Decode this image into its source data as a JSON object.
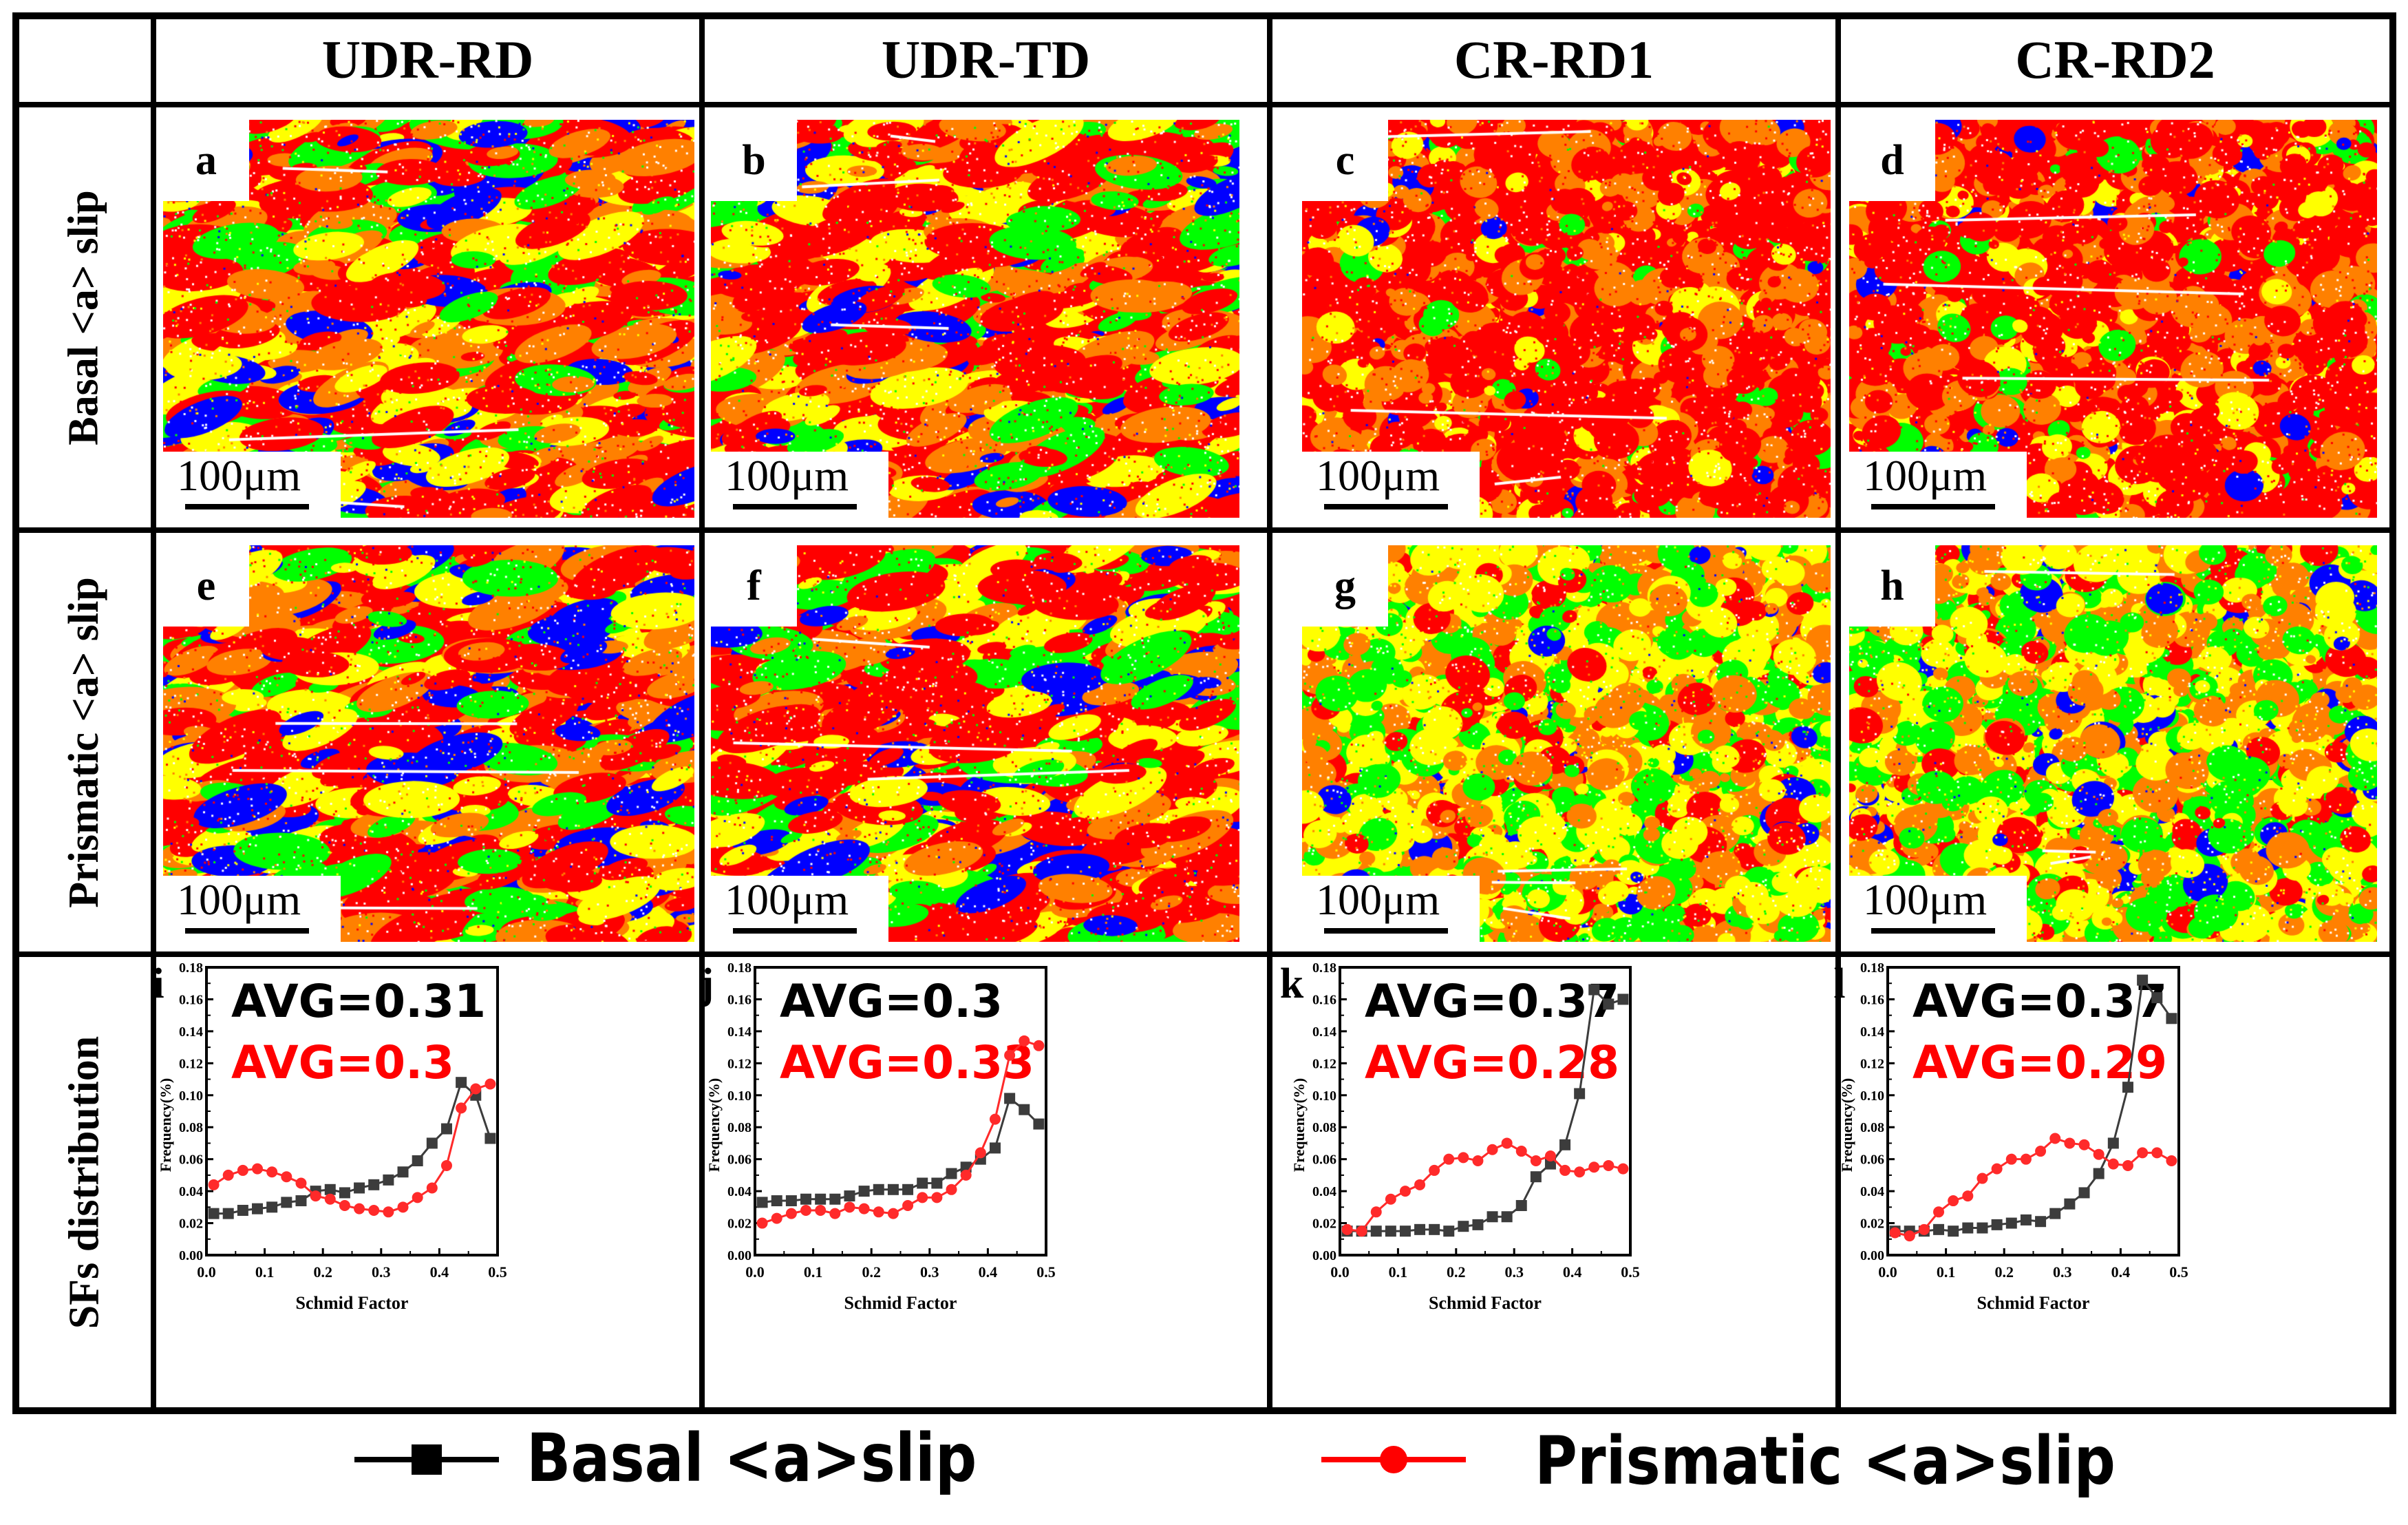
{
  "headers": {
    "columns": [
      "UDR-RD",
      "UDR-TD",
      "CR-RD1",
      "CR-RD2"
    ],
    "rows": [
      "Basal <a> slip",
      "Prismatic <a> slip",
      "SFs distribution"
    ]
  },
  "maps": {
    "labels": [
      "a",
      "b",
      "c",
      "d",
      "e",
      "f",
      "g",
      "h"
    ],
    "scale_bar": "100μm",
    "palette": [
      "#ff0000",
      "#ff8000",
      "#ffff00",
      "#00ff00",
      "#0000ff"
    ]
  },
  "legend": {
    "basal": {
      "label": "Basal <a>slip",
      "color": "#000000"
    },
    "prismatic": {
      "label": "Prismatic <a>slip",
      "color": "#ff0000"
    }
  },
  "chart_data": [
    {
      "type": "line",
      "panel": "i",
      "avg_basal": "AVG=0.31",
      "avg_prismatic": "AVG=0.3",
      "xlabel": "Schmid Factor",
      "ylabel": "Frequency(%)",
      "xlim": [
        0,
        0.5
      ],
      "ylim": [
        0,
        0.18
      ],
      "xticks": [
        "0.0",
        "0.1",
        "0.2",
        "0.3",
        "0.4",
        "0.5"
      ],
      "yticks": [
        "0.00",
        "0.02",
        "0.04",
        "0.06",
        "0.08",
        "0.10",
        "0.12",
        "0.14",
        "0.16",
        "0.18"
      ],
      "x": [
        0.0125,
        0.0375,
        0.0625,
        0.0875,
        0.1125,
        0.1375,
        0.1625,
        0.1875,
        0.2125,
        0.2375,
        0.2625,
        0.2875,
        0.3125,
        0.3375,
        0.3625,
        0.3875,
        0.4125,
        0.4375,
        0.4625,
        0.4875
      ],
      "series": [
        {
          "name": "Basal <a>slip",
          "color": "#3c3c3c",
          "marker": "square",
          "values": [
            0.026,
            0.026,
            0.028,
            0.029,
            0.03,
            0.033,
            0.034,
            0.04,
            0.041,
            0.039,
            0.042,
            0.044,
            0.047,
            0.052,
            0.059,
            0.07,
            0.079,
            0.108,
            0.1,
            0.073
          ]
        },
        {
          "name": "Prismatic <a>slip",
          "color": "#ff2a2a",
          "marker": "circle",
          "values": [
            0.044,
            0.05,
            0.053,
            0.054,
            0.052,
            0.049,
            0.045,
            0.037,
            0.035,
            0.031,
            0.029,
            0.028,
            0.027,
            0.03,
            0.036,
            0.042,
            0.056,
            0.092,
            0.104,
            0.107
          ]
        }
      ]
    },
    {
      "type": "line",
      "panel": "j",
      "avg_basal": "AVG=0.3",
      "avg_prismatic": "AVG=0.33",
      "xlabel": "Schmid Factor",
      "ylabel": "Frequency(%)",
      "xlim": [
        0,
        0.5
      ],
      "ylim": [
        0,
        0.18
      ],
      "xticks": [
        "0.0",
        "0.1",
        "0.2",
        "0.3",
        "0.4",
        "0.5"
      ],
      "yticks": [
        "0.00",
        "0.02",
        "0.04",
        "0.06",
        "0.08",
        "0.10",
        "0.12",
        "0.14",
        "0.16",
        "0.18"
      ],
      "x": [
        0.0125,
        0.0375,
        0.0625,
        0.0875,
        0.1125,
        0.1375,
        0.1625,
        0.1875,
        0.2125,
        0.2375,
        0.2625,
        0.2875,
        0.3125,
        0.3375,
        0.3625,
        0.3875,
        0.4125,
        0.4375,
        0.4625,
        0.4875
      ],
      "series": [
        {
          "name": "Basal <a>slip",
          "color": "#3c3c3c",
          "marker": "square",
          "values": [
            0.033,
            0.034,
            0.034,
            0.035,
            0.035,
            0.035,
            0.037,
            0.04,
            0.041,
            0.041,
            0.041,
            0.045,
            0.045,
            0.051,
            0.055,
            0.06,
            0.067,
            0.098,
            0.091,
            0.082
          ]
        },
        {
          "name": "Prismatic <a>slip",
          "color": "#ff2a2a",
          "marker": "circle",
          "values": [
            0.02,
            0.023,
            0.026,
            0.028,
            0.028,
            0.026,
            0.03,
            0.029,
            0.027,
            0.026,
            0.031,
            0.036,
            0.036,
            0.041,
            0.05,
            0.064,
            0.085,
            0.125,
            0.134,
            0.131
          ]
        }
      ]
    },
    {
      "type": "line",
      "panel": "k",
      "avg_basal": "AVG=0.37",
      "avg_prismatic": "AVG=0.28",
      "xlabel": "Schmid Factor",
      "ylabel": "Frequency(%)",
      "xlim": [
        0,
        0.5
      ],
      "ylim": [
        0,
        0.18
      ],
      "xticks": [
        "0.0",
        "0.1",
        "0.2",
        "0.3",
        "0.4",
        "0.5"
      ],
      "yticks": [
        "0.00",
        "0.02",
        "0.04",
        "0.06",
        "0.08",
        "0.10",
        "0.12",
        "0.14",
        "0.16",
        "0.18"
      ],
      "x": [
        0.0125,
        0.0375,
        0.0625,
        0.0875,
        0.1125,
        0.1375,
        0.1625,
        0.1875,
        0.2125,
        0.2375,
        0.2625,
        0.2875,
        0.3125,
        0.3375,
        0.3625,
        0.3875,
        0.4125,
        0.4375,
        0.4625,
        0.4875
      ],
      "series": [
        {
          "name": "Basal <a>slip",
          "color": "#3c3c3c",
          "marker": "square",
          "values": [
            0.015,
            0.015,
            0.015,
            0.015,
            0.015,
            0.016,
            0.016,
            0.015,
            0.018,
            0.019,
            0.024,
            0.024,
            0.031,
            0.049,
            0.057,
            0.069,
            0.101,
            0.166,
            0.157,
            0.16
          ]
        },
        {
          "name": "Prismatic <a>slip",
          "color": "#ff2a2a",
          "marker": "circle",
          "values": [
            0.016,
            0.015,
            0.027,
            0.035,
            0.04,
            0.044,
            0.053,
            0.06,
            0.061,
            0.059,
            0.066,
            0.07,
            0.065,
            0.059,
            0.062,
            0.053,
            0.052,
            0.055,
            0.056,
            0.054
          ]
        }
      ]
    },
    {
      "type": "line",
      "panel": "l",
      "avg_basal": "AVG=0.37",
      "avg_prismatic": "AVG=0.29",
      "xlabel": "Schmid Factor",
      "ylabel": "Frequency(%)",
      "xlim": [
        0,
        0.5
      ],
      "ylim": [
        0,
        0.18
      ],
      "xticks": [
        "0.0",
        "0.1",
        "0.2",
        "0.3",
        "0.4",
        "0.5"
      ],
      "yticks": [
        "0.00",
        "0.02",
        "0.04",
        "0.06",
        "0.08",
        "0.10",
        "0.12",
        "0.14",
        "0.16",
        "0.18"
      ],
      "x": [
        0.0125,
        0.0375,
        0.0625,
        0.0875,
        0.1125,
        0.1375,
        0.1625,
        0.1875,
        0.2125,
        0.2375,
        0.2625,
        0.2875,
        0.3125,
        0.3375,
        0.3625,
        0.3875,
        0.4125,
        0.4375,
        0.4625,
        0.4875
      ],
      "series": [
        {
          "name": "Basal <a>slip",
          "color": "#3c3c3c",
          "marker": "square",
          "values": [
            0.015,
            0.015,
            0.015,
            0.016,
            0.015,
            0.017,
            0.017,
            0.019,
            0.02,
            0.022,
            0.021,
            0.026,
            0.032,
            0.039,
            0.051,
            0.07,
            0.105,
            0.172,
            0.161,
            0.148
          ]
        },
        {
          "name": "Prismatic <a>slip",
          "color": "#ff2a2a",
          "marker": "circle",
          "values": [
            0.014,
            0.012,
            0.016,
            0.027,
            0.034,
            0.037,
            0.048,
            0.054,
            0.06,
            0.06,
            0.065,
            0.073,
            0.07,
            0.069,
            0.063,
            0.057,
            0.056,
            0.064,
            0.064,
            0.059
          ]
        }
      ]
    }
  ]
}
